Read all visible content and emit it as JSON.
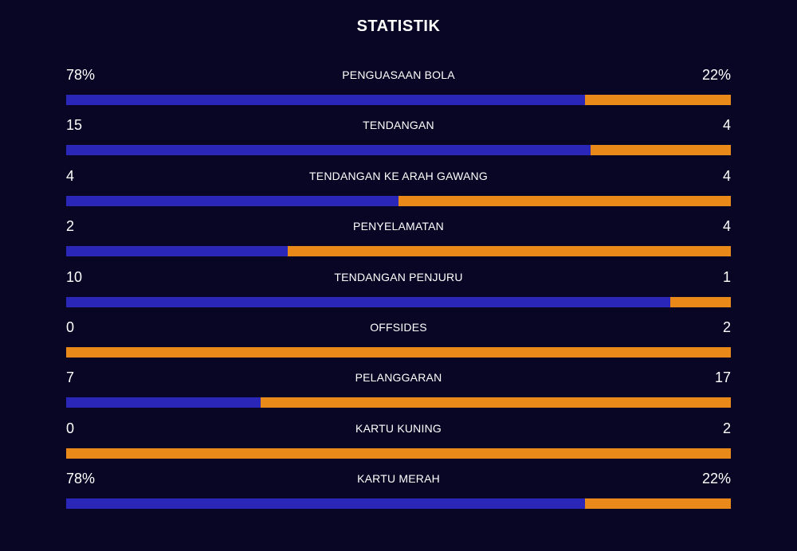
{
  "title": "STATISTIK",
  "colors": {
    "background": "#080624",
    "home": "#2a27b8",
    "away": "#e8891a"
  },
  "stats": [
    {
      "label": "PENGUASAAN BOLA",
      "home": "78%",
      "away": "22%",
      "home_share": 0.78
    },
    {
      "label": "TENDANGAN",
      "home": "15",
      "away": "4",
      "home_share": 0.789
    },
    {
      "label": "TENDANGAN KE ARAH GAWANG",
      "home": "4",
      "away": "4",
      "home_share": 0.5
    },
    {
      "label": "PENYELAMATAN",
      "home": "2",
      "away": "4",
      "home_share": 0.333
    },
    {
      "label": "TENDANGAN PENJURU",
      "home": "10",
      "away": "1",
      "home_share": 0.909
    },
    {
      "label": "OFFSIDES",
      "home": "0",
      "away": "2",
      "home_share": 0.0
    },
    {
      "label": "PELANGGARAN",
      "home": "7",
      "away": "17",
      "home_share": 0.292
    },
    {
      "label": "KARTU KUNING",
      "home": "0",
      "away": "2",
      "home_share": 0.0
    },
    {
      "label": "KARTU MERAH",
      "home": "78%",
      "away": "22%",
      "home_share": 0.78
    }
  ]
}
